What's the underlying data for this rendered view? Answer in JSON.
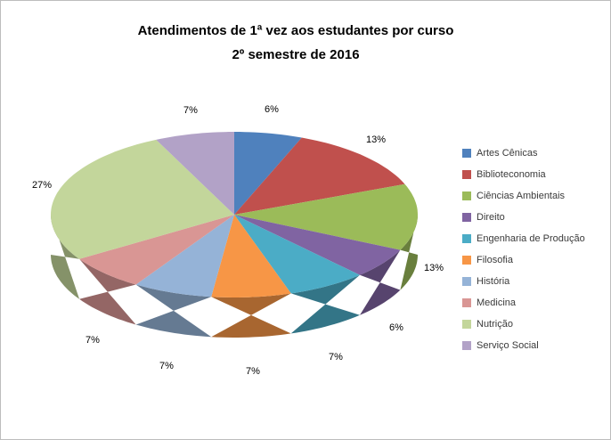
{
  "title": {
    "line1": "Atendimentos de 1ª vez aos estudantes por curso",
    "line2": "2º semestre de 2016"
  },
  "chart_data": {
    "type": "pie",
    "style": "3d",
    "unit": "%",
    "title": "Atendimentos de 1ª vez aos estudantes por curso 2º semestre de 2016",
    "legend_position": "right",
    "start_angle_deg": 0,
    "direction": "clockwise",
    "categories": [
      "Artes Cênicas",
      "Biblioteconomia",
      "Ciências Ambientais",
      "Direito",
      "Engenharia de Produção",
      "Filosofia",
      "História",
      "Medicina",
      "Nutrição",
      "Serviço Social"
    ],
    "values": [
      6,
      13,
      13,
      6,
      7,
      7,
      7,
      7,
      27,
      7
    ],
    "labels": [
      "6%",
      "13%",
      "13%",
      "6%",
      "7%",
      "7%",
      "7%",
      "7%",
      "27%",
      "7%"
    ],
    "colors": [
      "#4F81BD",
      "#C0504D",
      "#9BBB59",
      "#8064A2",
      "#4BACC6",
      "#F79646",
      "#95B3D7",
      "#D99694",
      "#C3D69B",
      "#B2A2C7"
    ]
  }
}
